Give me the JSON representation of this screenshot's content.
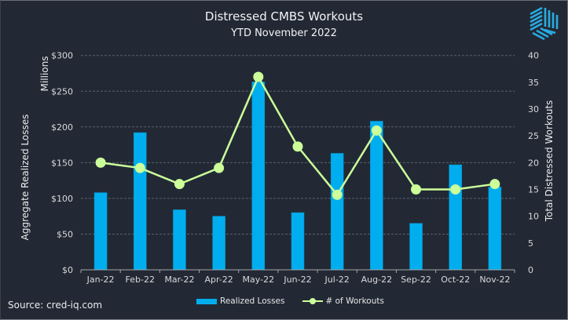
{
  "chart_data": {
    "type": "bar+line",
    "title": "Distressed CMBS Workouts",
    "subtitle": "YTD November 2022",
    "categories": [
      "Jan-22",
      "Feb-22",
      "Mar-22",
      "Apr-22",
      "May-22",
      "Jun-22",
      "Jul-22",
      "Aug-22",
      "Sep-22",
      "Oct-22",
      "Nov-22"
    ],
    "series": [
      {
        "name": "Realized Losses",
        "type": "bar",
        "axis": "left",
        "color": "#00aeef",
        "values": [
          108,
          192,
          84,
          75,
          263,
          80,
          163,
          208,
          65,
          147,
          116
        ]
      },
      {
        "name": "# of Workouts",
        "type": "line",
        "axis": "right",
        "color": "#ccff99",
        "values": [
          20,
          19,
          16,
          19,
          36,
          23,
          14,
          26,
          15,
          15,
          16
        ]
      }
    ],
    "y_left": {
      "label": "Aggregate Realized Losses",
      "unit_label": "Millions",
      "range": [
        0,
        300
      ],
      "ticks": [
        "$0",
        "$50",
        "$100",
        "$150",
        "$200",
        "$250",
        "$300"
      ],
      "tick_values": [
        0,
        50,
        100,
        150,
        200,
        250,
        300
      ]
    },
    "y_right": {
      "label": "Total Distressed Workouts",
      "range": [
        0,
        40
      ],
      "ticks": [
        "0",
        "5",
        "10",
        "15",
        "20",
        "25",
        "30",
        "35",
        "40"
      ],
      "tick_values": [
        0,
        5,
        10,
        15,
        20,
        25,
        30,
        35,
        40
      ]
    },
    "grid": true,
    "legend_position": "bottom",
    "legend": [
      "Realized Losses",
      "# of Workouts"
    ]
  },
  "source": "Source: cred-iq.com",
  "logo": "cred-iq-logo-icon",
  "colors": {
    "background": "#222935",
    "bar": "#00aeef",
    "line": "#ccff99",
    "grid": "#5a606a"
  }
}
